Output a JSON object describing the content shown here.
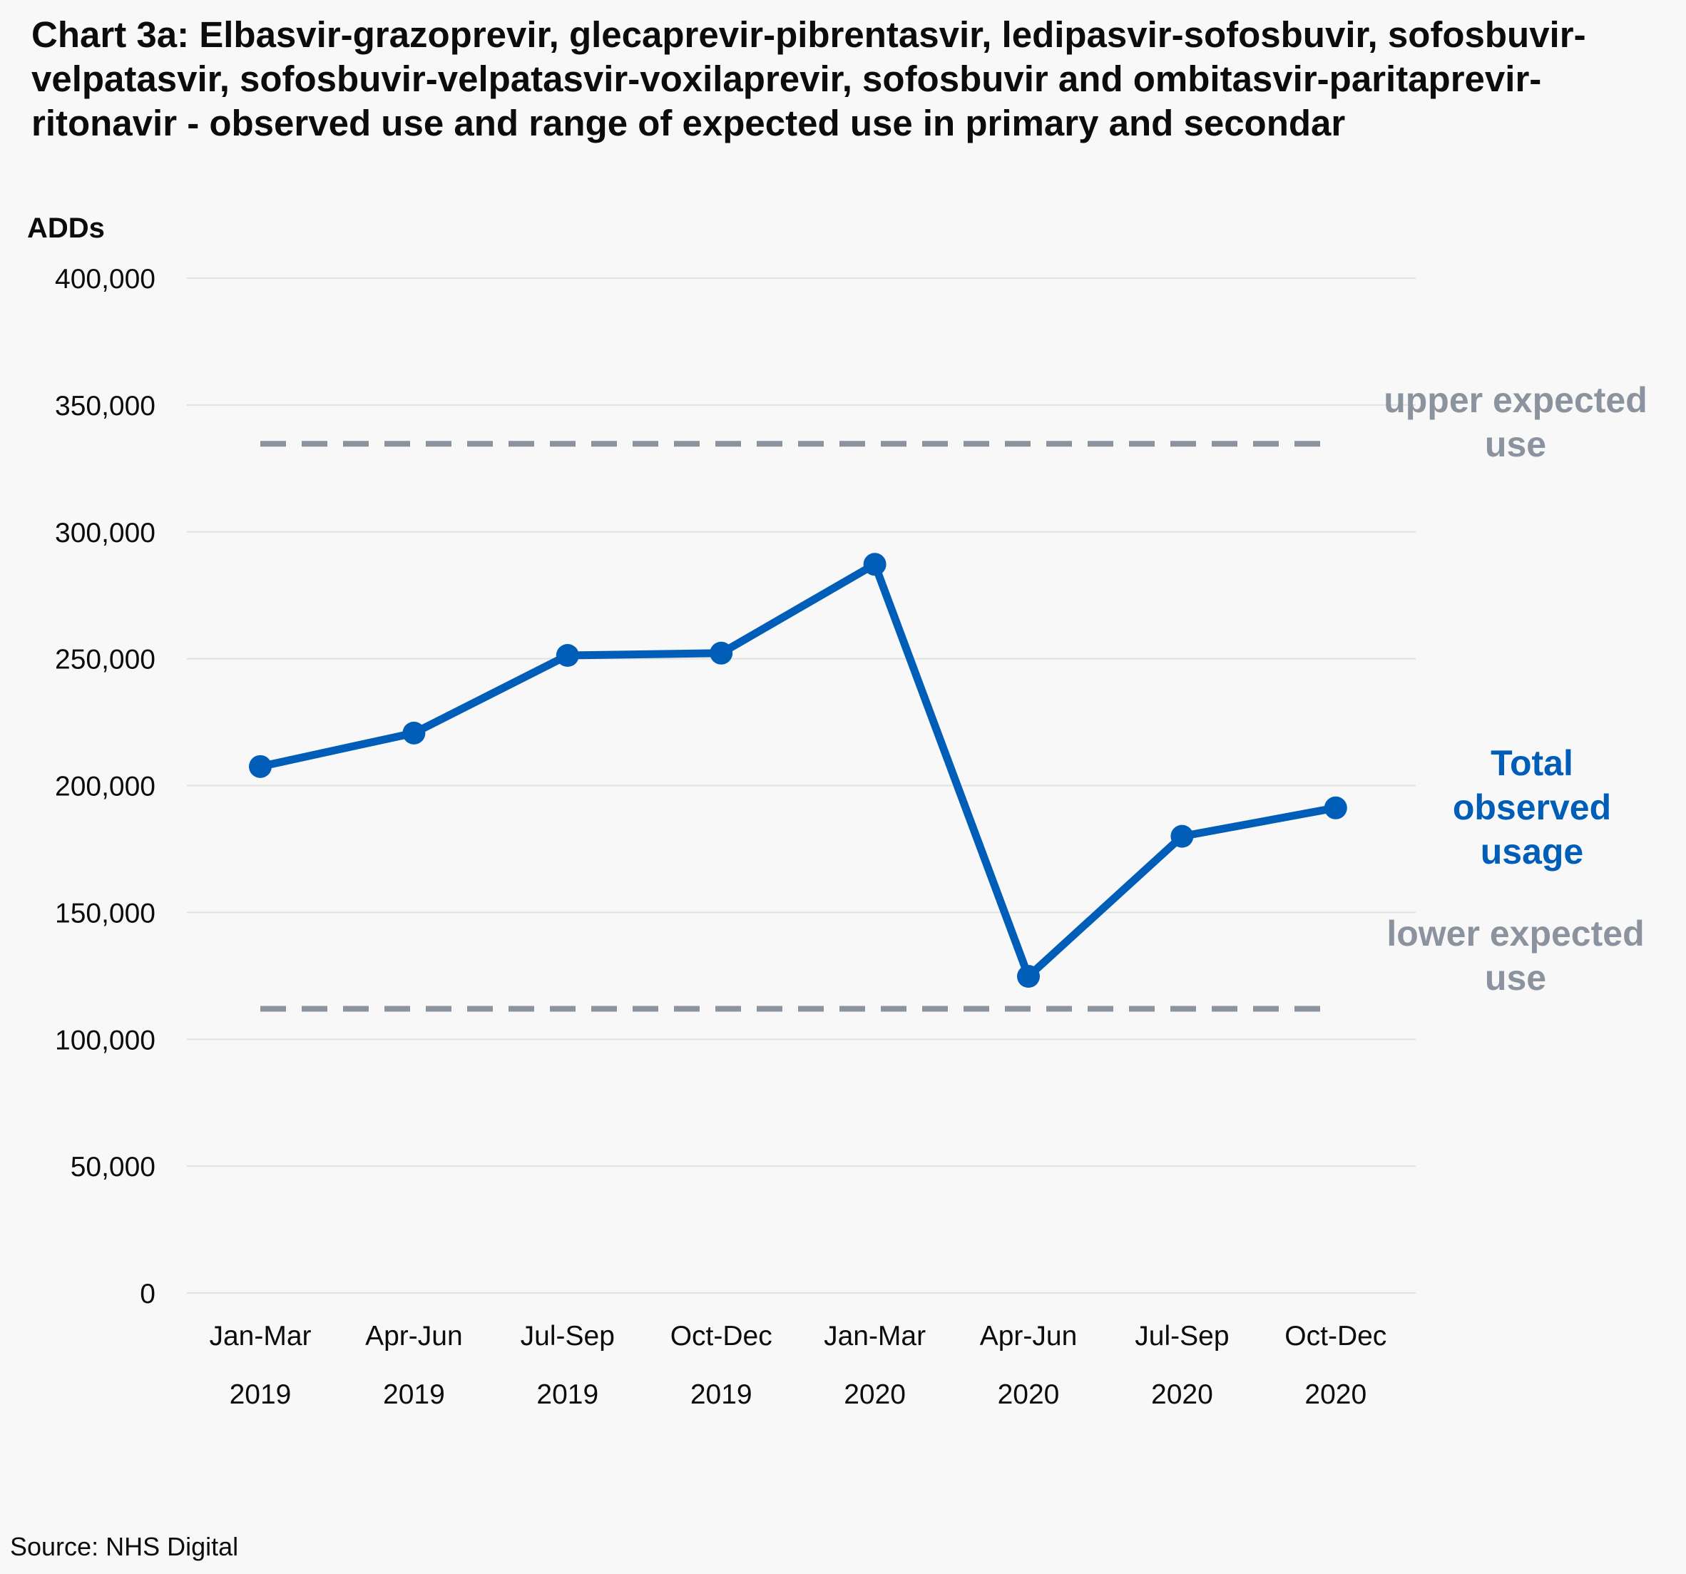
{
  "chart_data": {
    "type": "line",
    "title": "Chart 3a: Elbasvir-grazoprevir, glecaprevir-pibrentasvir, ledipasvir-sofosbuvir, sofosbuvir-velpatasvir, sofosbuvir-velpatasvir-voxilaprevir, sofosbuvir and ombitasvir-paritaprevir-ritonavir - observed use and range of expected use in primary and secondar",
    "ylabel": "ADDs",
    "xlabel": "",
    "ylim": [
      0,
      400000
    ],
    "yticks": [
      0,
      50000,
      100000,
      150000,
      200000,
      250000,
      300000,
      350000,
      400000
    ],
    "ytick_labels": [
      "0",
      "50,000",
      "100,000",
      "150,000",
      "200,000",
      "250,000",
      "300,000",
      "350,000",
      "400,000"
    ],
    "grid": "horizontal",
    "categories": [
      {
        "line1": "Jan-Mar",
        "line2": "2019"
      },
      {
        "line1": "Apr-Jun",
        "line2": "2019"
      },
      {
        "line1": "Jul-Sep",
        "line2": "2019"
      },
      {
        "line1": "Oct-Dec",
        "line2": "2019"
      },
      {
        "line1": "Jan-Mar",
        "line2": "2020"
      },
      {
        "line1": "Apr-Jun",
        "line2": "2020"
      },
      {
        "line1": "Jul-Sep",
        "line2": "2020"
      },
      {
        "line1": "Oct-Dec",
        "line2": "2020"
      }
    ],
    "series": [
      {
        "name": "Total observed usage",
        "style": "solid-markers",
        "color": "#005eb8",
        "values": [
          207500,
          220700,
          251300,
          252200,
          287200,
          124800,
          180000,
          191200
        ]
      },
      {
        "name": "upper expected use",
        "style": "dashed",
        "color": "#8a939e",
        "values": [
          334700,
          334700,
          334700,
          334700,
          334700,
          334700,
          334700,
          334700
        ]
      },
      {
        "name": "lower expected use",
        "style": "dashed",
        "color": "#8a939e",
        "values": [
          112000,
          112000,
          112000,
          112000,
          112000,
          112000,
          112000,
          112000
        ]
      }
    ],
    "direct_labels": {
      "observed": [
        "Total",
        "observed",
        "usage"
      ],
      "upper": [
        "upper expected",
        "use"
      ],
      "lower": [
        "lower expected",
        "use"
      ]
    }
  },
  "source": "Source: NHS Digital"
}
